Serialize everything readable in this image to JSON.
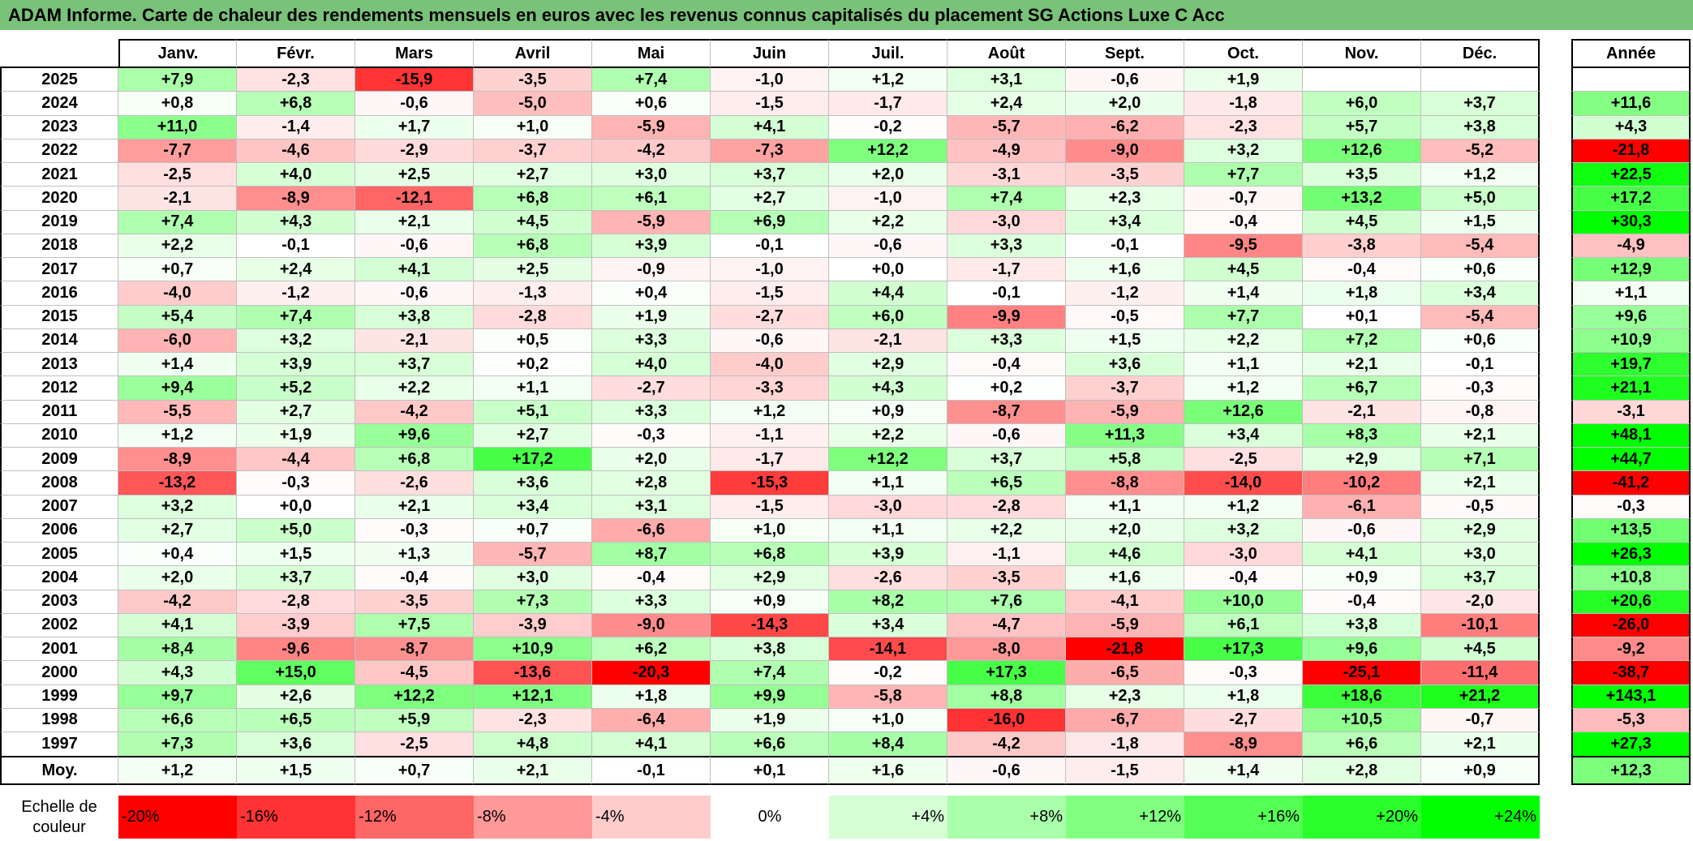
{
  "colors": {
    "title_bar": "#79c279"
  },
  "chart_data": {
    "type": "heatmap",
    "title": "ADAM Informe. Carte de chaleur des rendements mensuels en euros avec les revenus connus capitalisés du placement SG Actions Luxe C Acc",
    "months": [
      "Janv.",
      "Févr.",
      "Mars",
      "Avril",
      "Mai",
      "Juin",
      "Juil.",
      "Août",
      "Sept.",
      "Oct.",
      "Nov.",
      "Déc."
    ],
    "annual_label": "Année",
    "average_label": "Moy.",
    "rows": [
      {
        "year": "2025",
        "values": [
          7.9,
          -2.3,
          -15.9,
          -3.5,
          7.4,
          -1.0,
          1.2,
          3.1,
          -0.6,
          1.9,
          null,
          null
        ],
        "annual": null
      },
      {
        "year": "2024",
        "values": [
          0.8,
          6.8,
          -0.6,
          -5.0,
          0.6,
          -1.5,
          -1.7,
          2.4,
          2.0,
          -1.8,
          6.0,
          3.7
        ],
        "annual": 11.6
      },
      {
        "year": "2023",
        "values": [
          11.0,
          -1.4,
          1.7,
          1.0,
          -5.9,
          4.1,
          -0.2,
          -5.7,
          -6.2,
          -2.3,
          5.7,
          3.8
        ],
        "annual": 4.3
      },
      {
        "year": "2022",
        "values": [
          -7.7,
          -4.6,
          -2.9,
          -3.7,
          -4.2,
          -7.3,
          12.2,
          -4.9,
          -9.0,
          3.2,
          12.6,
          -5.2
        ],
        "annual": -21.8
      },
      {
        "year": "2021",
        "values": [
          -2.5,
          4.0,
          2.5,
          2.7,
          3.0,
          3.7,
          2.0,
          -3.1,
          -3.5,
          7.7,
          3.5,
          1.2
        ],
        "annual": 22.5
      },
      {
        "year": "2020",
        "values": [
          -2.1,
          -8.9,
          -12.1,
          6.8,
          6.1,
          2.7,
          -1.0,
          7.4,
          2.3,
          -0.7,
          13.2,
          5.0
        ],
        "annual": 17.2
      },
      {
        "year": "2019",
        "values": [
          7.4,
          4.3,
          2.1,
          4.5,
          -5.9,
          6.9,
          2.2,
          -3.0,
          3.4,
          -0.4,
          4.5,
          1.5
        ],
        "annual": 30.3
      },
      {
        "year": "2018",
        "values": [
          2.2,
          -0.1,
          -0.6,
          6.8,
          3.9,
          -0.1,
          -0.6,
          3.3,
          -0.1,
          -9.5,
          -3.8,
          -5.4
        ],
        "annual": -4.9
      },
      {
        "year": "2017",
        "values": [
          0.7,
          2.4,
          4.1,
          2.5,
          -0.9,
          -1.0,
          0.0,
          -1.7,
          1.6,
          4.5,
          -0.4,
          0.6
        ],
        "annual": 12.9
      },
      {
        "year": "2016",
        "values": [
          -4.0,
          -1.2,
          -0.6,
          -1.3,
          0.4,
          -1.5,
          4.4,
          -0.1,
          -1.2,
          1.4,
          1.8,
          3.4
        ],
        "annual": 1.1
      },
      {
        "year": "2015",
        "values": [
          5.4,
          7.4,
          3.8,
          -2.8,
          1.9,
          -2.7,
          6.0,
          -9.9,
          -0.5,
          7.7,
          0.1,
          -5.4
        ],
        "annual": 9.6
      },
      {
        "year": "2014",
        "values": [
          -6.0,
          3.2,
          -2.1,
          0.5,
          3.3,
          -0.6,
          -2.1,
          3.3,
          1.5,
          2.2,
          7.2,
          0.6
        ],
        "annual": 10.9
      },
      {
        "year": "2013",
        "values": [
          1.4,
          3.9,
          3.7,
          0.2,
          4.0,
          -4.0,
          2.9,
          -0.4,
          3.6,
          1.1,
          2.1,
          -0.1
        ],
        "annual": 19.7
      },
      {
        "year": "2012",
        "values": [
          9.4,
          5.2,
          2.2,
          1.1,
          -2.7,
          -3.3,
          4.3,
          0.2,
          -3.7,
          1.2,
          6.7,
          -0.3
        ],
        "annual": 21.1
      },
      {
        "year": "2011",
        "values": [
          -5.5,
          2.7,
          -4.2,
          5.1,
          3.3,
          1.2,
          0.9,
          -8.7,
          -5.9,
          12.6,
          -2.1,
          -0.8
        ],
        "annual": -3.1
      },
      {
        "year": "2010",
        "values": [
          1.2,
          1.9,
          9.6,
          2.7,
          -0.3,
          -1.1,
          2.2,
          -0.6,
          11.3,
          3.4,
          8.3,
          2.1
        ],
        "annual": 48.1
      },
      {
        "year": "2009",
        "values": [
          -8.9,
          -4.4,
          6.8,
          17.2,
          2.0,
          -1.7,
          12.2,
          3.7,
          5.8,
          -2.5,
          2.9,
          7.1
        ],
        "annual": 44.7
      },
      {
        "year": "2008",
        "values": [
          -13.2,
          -0.3,
          -2.6,
          3.6,
          2.8,
          -15.3,
          1.1,
          6.5,
          -8.8,
          -14.0,
          -10.2,
          2.1
        ],
        "annual": -41.2
      },
      {
        "year": "2007",
        "values": [
          3.2,
          0.0,
          2.1,
          3.4,
          3.1,
          -1.5,
          -3.0,
          -2.8,
          1.1,
          1.2,
          -6.1,
          -0.5
        ],
        "annual": -0.3
      },
      {
        "year": "2006",
        "values": [
          2.7,
          5.0,
          -0.3,
          0.7,
          -6.6,
          1.0,
          1.1,
          2.2,
          2.0,
          3.2,
          -0.6,
          2.9
        ],
        "annual": 13.5
      },
      {
        "year": "2005",
        "values": [
          0.4,
          1.5,
          1.3,
          -5.7,
          8.7,
          6.8,
          3.9,
          -1.1,
          4.6,
          -3.0,
          4.1,
          3.0
        ],
        "annual": 26.3
      },
      {
        "year": "2004",
        "values": [
          2.0,
          3.7,
          -0.4,
          3.0,
          -0.4,
          2.9,
          -2.6,
          -3.5,
          1.6,
          -0.4,
          0.9,
          3.7
        ],
        "annual": 10.8
      },
      {
        "year": "2003",
        "values": [
          -4.2,
          -2.8,
          -3.5,
          7.3,
          3.3,
          0.9,
          8.2,
          7.6,
          -4.1,
          10.0,
          -0.4,
          -2.0
        ],
        "annual": 20.6
      },
      {
        "year": "2002",
        "values": [
          4.1,
          -3.9,
          7.5,
          -3.9,
          -9.0,
          -14.3,
          3.4,
          -4.7,
          -5.9,
          6.1,
          3.8,
          -10.1
        ],
        "annual": -26.0
      },
      {
        "year": "2001",
        "values": [
          8.4,
          -9.6,
          -8.7,
          10.9,
          6.2,
          3.8,
          -14.1,
          -8.0,
          -21.8,
          17.3,
          9.6,
          4.5
        ],
        "annual": -9.2
      },
      {
        "year": "2000",
        "values": [
          4.3,
          15.0,
          -4.5,
          -13.6,
          -20.3,
          7.4,
          -0.2,
          17.3,
          -6.5,
          -0.3,
          -25.1,
          -11.4
        ],
        "annual": -38.7
      },
      {
        "year": "1999",
        "values": [
          9.7,
          2.6,
          12.2,
          12.1,
          1.8,
          9.9,
          -5.8,
          8.8,
          2.3,
          1.8,
          18.6,
          21.2
        ],
        "annual": 143.1
      },
      {
        "year": "1998",
        "values": [
          6.6,
          6.5,
          5.9,
          -2.3,
          -6.4,
          1.9,
          1.0,
          -16.0,
          -6.7,
          -2.7,
          10.5,
          -0.7
        ],
        "annual": -5.3
      },
      {
        "year": "1997",
        "values": [
          7.3,
          3.6,
          -2.5,
          4.8,
          4.1,
          6.6,
          8.4,
          -4.2,
          -1.8,
          -8.9,
          6.6,
          2.1
        ],
        "annual": 27.3
      }
    ],
    "average": {
      "values": [
        1.2,
        1.5,
        0.7,
        2.1,
        -0.1,
        0.1,
        1.6,
        -0.6,
        -1.5,
        1.4,
        2.8,
        0.9
      ],
      "annual": 12.3
    },
    "color_scale": {
      "label": "Echelle de couleur",
      "stops": [
        {
          "label": "-20%",
          "color": "#ff0000"
        },
        {
          "label": "-16%",
          "color": "#ff3333"
        },
        {
          "label": "-12%",
          "color": "#ff6666"
        },
        {
          "label": "-8%",
          "color": "#ff9999"
        },
        {
          "label": "-4%",
          "color": "#ffcccc"
        },
        {
          "label": "0%",
          "color": "#ffffff"
        },
        {
          "label": "+4%",
          "color": "#d5ffd5"
        },
        {
          "label": "+8%",
          "color": "#aaffaa"
        },
        {
          "label": "+12%",
          "color": "#80ff80"
        },
        {
          "label": "+16%",
          "color": "#55ff55"
        },
        {
          "label": "+20%",
          "color": "#2bff2b"
        },
        {
          "label": "+24%",
          "color": "#00ff00"
        }
      ]
    }
  }
}
